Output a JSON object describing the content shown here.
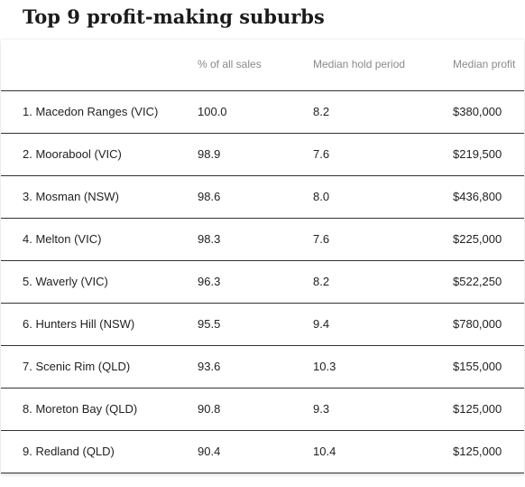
{
  "chart_data": {
    "type": "table",
    "title": "Top 9 profit-making suburbs",
    "columns": [
      "",
      "% of all sales",
      "Median hold period",
      "Median profit"
    ],
    "rows": [
      {
        "suburb": "1. Macedon Ranges (VIC)",
        "pct_sales": "100.0",
        "hold_period": "8.2",
        "profit": "$380,000"
      },
      {
        "suburb": "2. Moorabool (VIC)",
        "pct_sales": "98.9",
        "hold_period": "7.6",
        "profit": "$219,500"
      },
      {
        "suburb": "3. Mosman (NSW)",
        "pct_sales": "98.6",
        "hold_period": "8.0",
        "profit": "$436,800"
      },
      {
        "suburb": "4. Melton (VIC)",
        "pct_sales": "98.3",
        "hold_period": "7.6",
        "profit": "$225,000"
      },
      {
        "suburb": "5. Waverly (VIC)",
        "pct_sales": "96.3",
        "hold_period": "8.2",
        "profit": "$522,250"
      },
      {
        "suburb": "6. Hunters Hill (NSW)",
        "pct_sales": "95.5",
        "hold_period": "9.4",
        "profit": "$780,000"
      },
      {
        "suburb": "7. Scenic Rim (QLD)",
        "pct_sales": "93.6",
        "hold_period": "10.3",
        "profit": "$155,000"
      },
      {
        "suburb": "8. Moreton Bay (QLD)",
        "pct_sales": "90.8",
        "hold_period": "9.3",
        "profit": "$125,000"
      },
      {
        "suburb": "9. Redland (QLD)",
        "pct_sales": "90.4",
        "hold_period": "10.4",
        "profit": "$125,000"
      }
    ]
  }
}
